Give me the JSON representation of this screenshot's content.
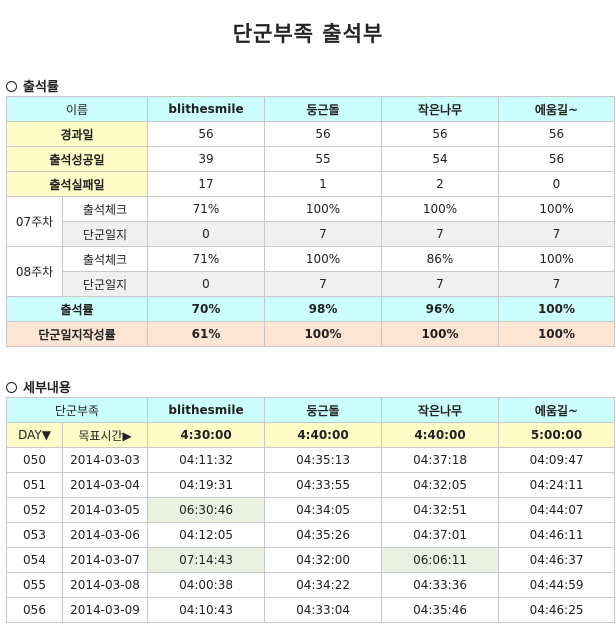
{
  "title": "단군부족 출석부",
  "attendance_section": "출석률",
  "detail_section": "세부내용",
  "attendance": {
    "header": [
      "이름",
      "blithesmile",
      "둥근돌",
      "작은나무",
      "에움길~"
    ],
    "elapsed": {
      "label": "경과일",
      "values": [
        "56",
        "56",
        "56",
        "56"
      ]
    },
    "success": {
      "label": "출석성공일",
      "values": [
        "39",
        "55",
        "54",
        "56"
      ]
    },
    "fail": {
      "label": "출석실패일",
      "values": [
        "17",
        "1",
        "2",
        "0"
      ]
    },
    "weeks": [
      {
        "label": "07주차",
        "check_label": "출석체크",
        "check": [
          "71%",
          "100%",
          "100%",
          "100%"
        ],
        "journal_label": "단군일지",
        "journal": [
          "0",
          "7",
          "7",
          "7"
        ]
      },
      {
        "label": "08주차",
        "check_label": "출석체크",
        "check": [
          "71%",
          "100%",
          "86%",
          "100%"
        ],
        "journal_label": "단군일지",
        "journal": [
          "0",
          "7",
          "7",
          "7"
        ]
      }
    ],
    "rate": {
      "label": "출석률",
      "values": [
        "70%",
        "98%",
        "96%",
        "100%"
      ]
    },
    "journal_rate": {
      "label": "단군일지작성률",
      "values": [
        "61%",
        "100%",
        "100%",
        "100%"
      ]
    }
  },
  "detail": {
    "header": [
      "단군부족",
      "blithesmile",
      "둥근돌",
      "작은나무",
      "에움길~"
    ],
    "day_label": "DAY▼",
    "target_label": "목표시간▶",
    "targets": [
      "4:30:00",
      "4:40:00",
      "4:40:00",
      "5:00:00"
    ],
    "rows": [
      {
        "day": "050",
        "date": "2014-03-03",
        "times": [
          "04:11:32",
          "04:35:13",
          "04:37:18",
          "04:09:47"
        ]
      },
      {
        "day": "051",
        "date": "2014-03-04",
        "times": [
          "04:19:31",
          "04:33:55",
          "04:32:05",
          "04:24:11"
        ]
      },
      {
        "day": "052",
        "date": "2014-03-05",
        "times": [
          "06:30:46",
          "04:34:05",
          "04:32:51",
          "04:44:07"
        ]
      },
      {
        "day": "053",
        "date": "2014-03-06",
        "times": [
          "04:12:05",
          "04:35:26",
          "04:37:01",
          "04:46:11"
        ]
      },
      {
        "day": "054",
        "date": "2014-03-07",
        "times": [
          "07:14:43",
          "04:32:00",
          "06:06:11",
          "04:46:37"
        ]
      },
      {
        "day": "055",
        "date": "2014-03-08",
        "times": [
          "04:00:38",
          "04:34:22",
          "04:33:36",
          "04:44:59"
        ]
      },
      {
        "day": "056",
        "date": "2014-03-09",
        "times": [
          "04:10:43",
          "04:33:04",
          "04:35:46",
          "04:46:25"
        ]
      }
    ]
  }
}
